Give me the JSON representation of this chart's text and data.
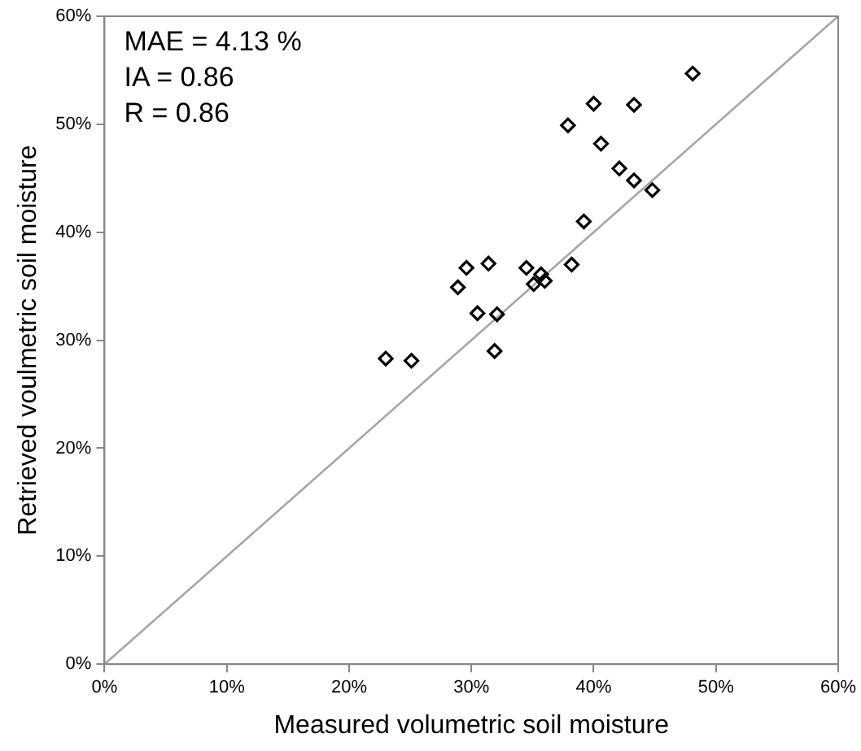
{
  "chart_data": {
    "type": "scatter",
    "xlabel": "Measured volumetric soil moisture",
    "ylabel": "Retrieved voulmetric soil moisture",
    "xlim": [
      0,
      60
    ],
    "ylim": [
      0,
      60
    ],
    "xticks": [
      {
        "value": 0,
        "label": "0%"
      },
      {
        "value": 10,
        "label": "10%"
      },
      {
        "value": 20,
        "label": "20%"
      },
      {
        "value": 30,
        "label": "30%"
      },
      {
        "value": 40,
        "label": "40%"
      },
      {
        "value": 50,
        "label": "50%"
      },
      {
        "value": 60,
        "label": "60%"
      }
    ],
    "yticks": [
      {
        "value": 0,
        "label": "0%"
      },
      {
        "value": 10,
        "label": "10%"
      },
      {
        "value": 20,
        "label": "20%"
      },
      {
        "value": 30,
        "label": "30%"
      },
      {
        "value": 40,
        "label": "40%"
      },
      {
        "value": 50,
        "label": "50%"
      },
      {
        "value": 60,
        "label": "60%"
      }
    ],
    "grid": false,
    "legend": false,
    "marker": "diamond",
    "annotations": [
      "MAE = 4.13 %",
      "IA = 0.86",
      "R = 0.86"
    ],
    "series": [
      {
        "color": "#000000",
        "x": [
          23.0,
          25.1,
          31.9,
          30.5,
          32.1,
          28.9,
          29.6,
          31.4,
          34.5,
          35.1,
          35.7,
          36.0,
          38.2,
          39.2,
          44.8,
          43.3,
          42.1,
          40.6,
          37.9,
          40.0,
          43.3,
          48.1
        ],
        "values": [
          28.3,
          28.1,
          29.0,
          32.5,
          32.4,
          34.9,
          36.7,
          37.1,
          36.7,
          35.2,
          36.1,
          35.5,
          37.0,
          41.0,
          43.9,
          44.8,
          45.9,
          48.2,
          49.9,
          51.9,
          51.8,
          54.7
        ]
      },
      {
        "type": "line",
        "color": "#a6a6a6",
        "x": [
          0,
          60
        ],
        "values": [
          0,
          60
        ],
        "marker": "none"
      }
    ]
  }
}
